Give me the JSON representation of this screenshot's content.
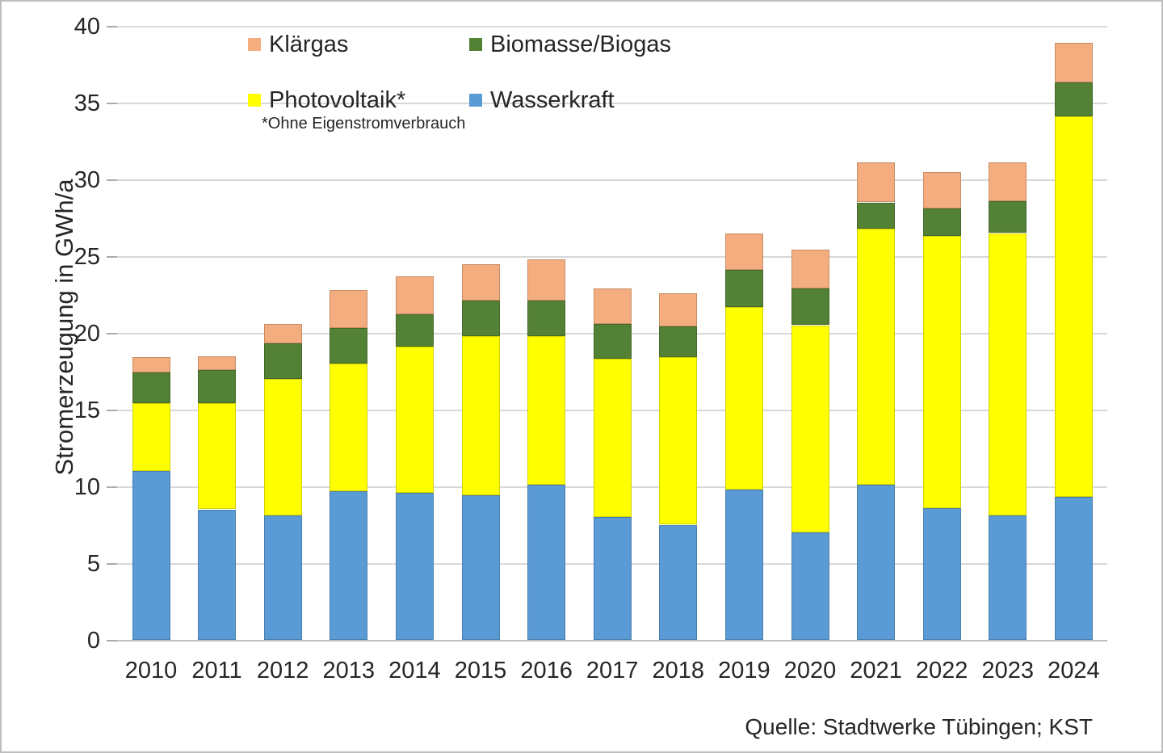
{
  "chart_data": {
    "type": "bar",
    "stacked": true,
    "stack_order": "bottom-to-top",
    "ylabel": "Stromerzeugung in GWh/a",
    "ylim": [
      0,
      40
    ],
    "ytick_step": 5,
    "grid": true,
    "legend_position": "top-inside",
    "categories": [
      "2010",
      "2011",
      "2012",
      "2013",
      "2014",
      "2015",
      "2016",
      "2017",
      "2018",
      "2019",
      "2020",
      "2021",
      "2022",
      "2023",
      "2024"
    ],
    "series": [
      {
        "name": "Wasserkraft",
        "color": "#5B9BD5",
        "values": [
          11.0,
          8.5,
          8.1,
          9.7,
          9.6,
          9.4,
          10.1,
          8.0,
          7.5,
          9.8,
          7.0,
          10.1,
          8.6,
          8.1,
          9.3
        ]
      },
      {
        "name": "Photovoltaik*",
        "color": "#FFFF00",
        "values": [
          4.4,
          6.9,
          8.9,
          8.3,
          9.5,
          10.4,
          9.7,
          10.3,
          10.9,
          11.9,
          13.5,
          16.7,
          17.7,
          18.4,
          24.8
        ]
      },
      {
        "name": "Biomasse/Biogas",
        "color": "#538135",
        "values": [
          2.0,
          2.2,
          2.3,
          2.3,
          2.1,
          2.3,
          2.3,
          2.3,
          2.0,
          2.4,
          2.4,
          1.7,
          1.8,
          2.1,
          2.2
        ]
      },
      {
        "name": "Klärgas",
        "color": "#F4AD7E",
        "values": [
          1.0,
          0.9,
          1.3,
          2.5,
          2.5,
          2.4,
          2.7,
          2.3,
          2.2,
          2.4,
          2.5,
          2.6,
          2.4,
          2.5,
          2.6
        ]
      }
    ]
  },
  "legend": {
    "items": [
      {
        "label": "Klärgas",
        "color": "#F4AD7E"
      },
      {
        "label": "Biomasse/Biogas",
        "color": "#538135"
      },
      {
        "label": "Photovoltaik*",
        "color": "#FFFF00"
      },
      {
        "label": "Wasserkraft",
        "color": "#5B9BD5"
      }
    ],
    "footnote": "*Ohne Eigenstromverbrauch"
  },
  "axis": {
    "y_title": "Stromerzeugung in GWh/a"
  },
  "source": "Quelle: Stadtwerke Tübingen; KST"
}
